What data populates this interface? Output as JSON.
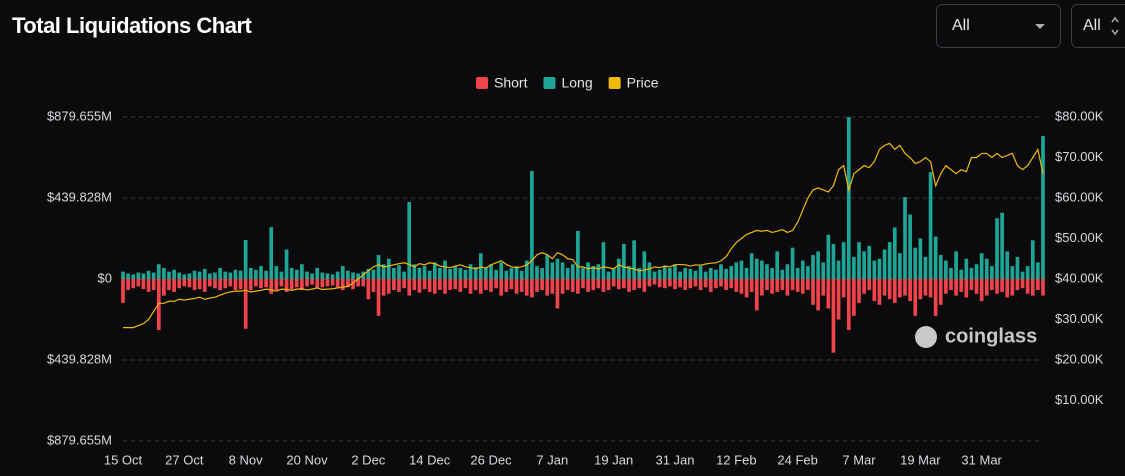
{
  "controls": [
    "All",
    "All"
  ],
  "watermark": "coinglass",
  "chart_data": {
    "type": "bar",
    "title": "Total Liquidations Chart",
    "categories": [
      "15 Oct",
      null,
      null,
      null,
      null,
      null,
      null,
      null,
      null,
      null,
      null,
      null,
      "27 Oct",
      null,
      null,
      null,
      null,
      null,
      null,
      null,
      null,
      null,
      null,
      null,
      "8 Nov",
      null,
      null,
      null,
      null,
      null,
      null,
      null,
      null,
      null,
      null,
      null,
      "20 Nov",
      null,
      null,
      null,
      null,
      null,
      null,
      null,
      null,
      null,
      null,
      null,
      "2 Dec",
      null,
      null,
      null,
      null,
      null,
      null,
      null,
      null,
      null,
      null,
      null,
      "14 Dec",
      null,
      null,
      null,
      null,
      null,
      null,
      null,
      null,
      null,
      null,
      null,
      "26 Dec",
      null,
      null,
      null,
      null,
      null,
      null,
      null,
      null,
      null,
      null,
      null,
      "7 Jan",
      null,
      null,
      null,
      null,
      null,
      null,
      null,
      null,
      null,
      null,
      null,
      "19 Jan",
      null,
      null,
      null,
      null,
      null,
      null,
      null,
      null,
      null,
      null,
      null,
      "31 Jan",
      null,
      null,
      null,
      null,
      null,
      null,
      null,
      null,
      null,
      null,
      null,
      "12 Feb",
      null,
      null,
      null,
      null,
      null,
      null,
      null,
      null,
      null,
      null,
      null,
      "24 Feb",
      null,
      null,
      null,
      null,
      null,
      null,
      null,
      null,
      null,
      null,
      null,
      "7 Mar",
      null,
      null,
      null,
      null,
      null,
      null,
      null,
      null,
      null,
      null,
      null,
      "19 Mar",
      null,
      null,
      null,
      null,
      null,
      null,
      null,
      null,
      null,
      null,
      null,
      "31 Mar",
      null,
      null,
      null,
      null,
      null,
      null,
      null,
      null,
      null,
      null,
      null,
      null
    ],
    "series": [
      {
        "name": "Short",
        "color": "#f0444c",
        "values": [
          -130,
          -60,
          -50,
          -40,
          -55,
          -70,
          -60,
          -277,
          -90,
          -60,
          -70,
          -50,
          -40,
          -45,
          -60,
          -55,
          -70,
          -40,
          -50,
          -60,
          -50,
          -40,
          -60,
          -55,
          -270,
          -60,
          -40,
          -50,
          -45,
          -80,
          -60,
          -40,
          -70,
          -55,
          -45,
          -60,
          -40,
          -30,
          -50,
          -45,
          -40,
          -35,
          -50,
          -60,
          -45,
          -55,
          -40,
          -40,
          -110,
          -70,
          -200,
          -90,
          -80,
          -60,
          -70,
          -50,
          -90,
          -60,
          -75,
          -55,
          -70,
          -80,
          -60,
          -80,
          -60,
          -55,
          -70,
          -50,
          -80,
          -60,
          -80,
          -60,
          -70,
          -50,
          -90,
          -70,
          -55,
          -80,
          -70,
          -90,
          -100,
          -70,
          -60,
          -90,
          -80,
          -160,
          -80,
          -60,
          -70,
          -80,
          -50,
          -70,
          -60,
          -50,
          -70,
          -60,
          -40,
          -55,
          -50,
          -70,
          -60,
          -50,
          -70,
          -40,
          -30,
          -45,
          -50,
          -40,
          -55,
          -45,
          -60,
          -50,
          -40,
          -60,
          -45,
          -70,
          -50,
          -40,
          -60,
          -50,
          -70,
          -80,
          -100,
          -70,
          -170,
          -90,
          -60,
          -80,
          -70,
          -60,
          -90,
          -60,
          -70,
          -80,
          -60,
          -140,
          -170,
          -90,
          -160,
          -400,
          -220,
          -100,
          -277,
          -200,
          -130,
          -80,
          -60,
          -120,
          -140,
          -90,
          -110,
          -130,
          -100,
          -90,
          -120,
          -200,
          -110,
          -90,
          -100,
          -200,
          -140,
          -80,
          -60,
          -90,
          -70,
          -100,
          -60,
          -80,
          -120,
          -90,
          -60,
          -80,
          -70,
          -100,
          -90,
          -60,
          -50,
          -80,
          -90,
          -60,
          -90
        ]
      },
      {
        "name": "Long",
        "color": "#1fa595",
        "values": [
          40,
          30,
          25,
          35,
          30,
          45,
          35,
          80,
          60,
          40,
          50,
          35,
          25,
          30,
          45,
          40,
          55,
          30,
          35,
          60,
          40,
          35,
          50,
          45,
          212,
          60,
          50,
          70,
          45,
          282,
          70,
          40,
          160,
          60,
          50,
          80,
          40,
          30,
          60,
          35,
          30,
          25,
          40,
          70,
          45,
          35,
          30,
          40,
          55,
          50,
          130,
          80,
          110,
          60,
          75,
          40,
          418,
          80,
          60,
          70,
          45,
          90,
          60,
          100,
          55,
          70,
          60,
          50,
          80,
          65,
          140,
          60,
          80,
          50,
          90,
          45,
          60,
          70,
          45,
          100,
          587,
          70,
          60,
          130,
          90,
          110,
          90,
          60,
          80,
          261,
          60,
          90,
          70,
          80,
          200,
          40,
          60,
          110,
          190,
          70,
          210,
          60,
          150,
          90,
          40,
          50,
          70,
          60,
          80,
          40,
          60,
          55,
          45,
          70,
          40,
          60,
          50,
          80,
          55,
          70,
          90,
          100,
          60,
          140,
          110,
          100,
          80,
          60,
          150,
          50,
          80,
          170,
          60,
          100,
          70,
          130,
          150,
          90,
          240,
          190,
          100,
          200,
          879,
          120,
          200,
          150,
          180,
          100,
          110,
          160,
          200,
          280,
          140,
          445,
          350,
          170,
          220,
          120,
          580,
          230,
          130,
          100,
          60,
          150,
          50,
          110,
          60,
          80,
          140,
          110,
          70,
          330,
          360,
          150,
          70,
          120,
          40,
          70,
          210,
          90,
          776
        ]
      },
      {
        "name": "Price",
        "color": "#f0b90b",
        "type": "line",
        "axis": "y2",
        "values": [
          28,
          28,
          28,
          28.5,
          29,
          30,
          32,
          34,
          34,
          34.5,
          34.5,
          35,
          34.8,
          35,
          35.2,
          35.5,
          35,
          35.3,
          35.5,
          36,
          36.5,
          36.8,
          37,
          37,
          37.2,
          36.8,
          37,
          37.2,
          37.5,
          37.3,
          37,
          37.5,
          37.4,
          37.2,
          37.5,
          37.6,
          37.3,
          37.5,
          37.8,
          37.4,
          37.5,
          37.6,
          37.8,
          38,
          38.2,
          39,
          40,
          41,
          42,
          43,
          43.5,
          43,
          43.2,
          43.5,
          43.8,
          44,
          43.6,
          43,
          43.8,
          43.5,
          44,
          43.8,
          43.2,
          43,
          42.8,
          43.2,
          43.5,
          43,
          42.8,
          42.5,
          43,
          42.7,
          43.5,
          44,
          44.5,
          43.6,
          43,
          42.8,
          43,
          43.5,
          44.5,
          46,
          46.5,
          46,
          45,
          46.5,
          46,
          45,
          44.8,
          43,
          43,
          42.5,
          42.8,
          42.5,
          43,
          42.8,
          42.5,
          43.5,
          43,
          42.7,
          42.5,
          42,
          42.2,
          42.5,
          43,
          42.8,
          43.2,
          43,
          43.5,
          43.6,
          43.5,
          43.2,
          43.5,
          43.4,
          43.7,
          43.9,
          44,
          44.5,
          45.5,
          47.5,
          49,
          50,
          51,
          51.5,
          52,
          51.8,
          52,
          51.5,
          51.8,
          52.2,
          51.5,
          52,
          54,
          57,
          60,
          62,
          62.5,
          62,
          61.5,
          63,
          67,
          68,
          62,
          66,
          67,
          68,
          67.5,
          69,
          72,
          73,
          73.5,
          72,
          73,
          71,
          70,
          68.5,
          69,
          70,
          69,
          63,
          66,
          68,
          67,
          66,
          67,
          66.5,
          70,
          70,
          71,
          71,
          70,
          71,
          70,
          70.5,
          71,
          68,
          67,
          68,
          70,
          72,
          66
        ]
      }
    ],
    "ylim": [
      -879.655,
      879.655
    ],
    "yticks": [
      {
        "value": -879.655,
        "label": "$879.655M"
      },
      {
        "value": -439.828,
        "label": "$439.828M"
      },
      {
        "value": 0,
        "label": "$0"
      },
      {
        "value": 439.828,
        "label": "$439.828M"
      },
      {
        "value": 879.655,
        "label": "$879.655M"
      }
    ],
    "y2lim": [
      0,
      80
    ],
    "y2ticks": [
      {
        "value": 10,
        "label": "$10.00K"
      },
      {
        "value": 20,
        "label": "$20.00K"
      },
      {
        "value": 30,
        "label": "$30.00K"
      },
      {
        "value": 40,
        "label": "$40.00K"
      },
      {
        "value": 50,
        "label": "$50.00K"
      },
      {
        "value": 60,
        "label": "$60.00K"
      },
      {
        "value": 70,
        "label": "$70.00K"
      },
      {
        "value": 80,
        "label": "$80.00K"
      }
    ],
    "grid": true,
    "legend": "top"
  }
}
